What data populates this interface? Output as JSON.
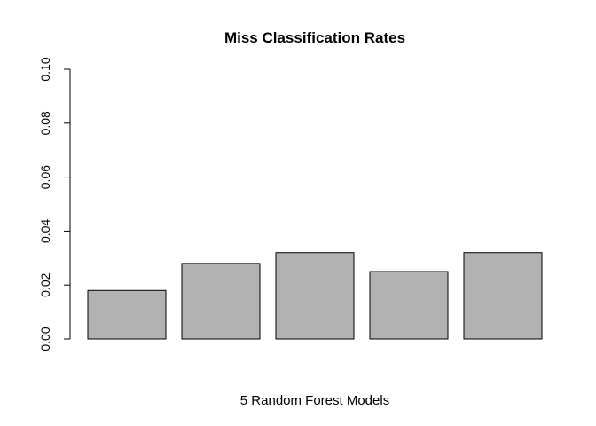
{
  "chart_data": {
    "type": "bar",
    "title": "Miss Classification Rates",
    "xlabel": "5 Random Forest Models",
    "ylabel": "",
    "categories": [
      "",
      "",
      "",
      "",
      ""
    ],
    "values": [
      0.018,
      0.028,
      0.032,
      0.025,
      0.032
    ],
    "ylim": [
      0,
      0.1
    ],
    "yticks": [
      "0.00",
      "0.02",
      "0.04",
      "0.06",
      "0.08",
      "0.10"
    ],
    "ytick_values": [
      0,
      0.02,
      0.04,
      0.06,
      0.08,
      0.1
    ],
    "grid": false,
    "bar_color": "#b2b2b2",
    "bar_border_color": "#000000"
  }
}
